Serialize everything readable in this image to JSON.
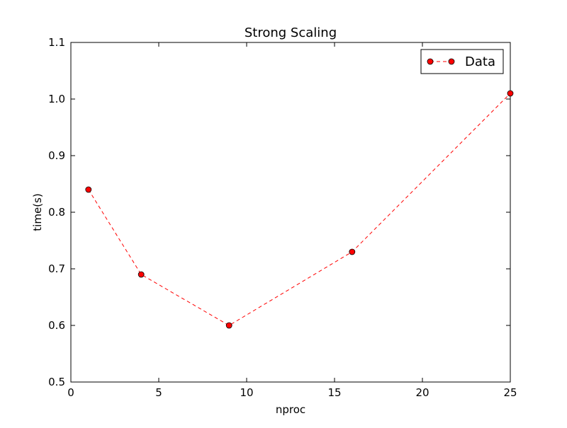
{
  "chart_data": {
    "type": "line",
    "title": "Strong Scaling",
    "xlabel": "nproc",
    "ylabel": "time(s)",
    "xlim": [
      0,
      25
    ],
    "ylim": [
      0.5,
      1.1
    ],
    "xticks": [
      0,
      5,
      10,
      15,
      20,
      25
    ],
    "xtick_labels": [
      "0",
      "5",
      "10",
      "15",
      "20",
      "25"
    ],
    "yticks": [
      0.5,
      0.6,
      0.7,
      0.8,
      0.9,
      1.0,
      1.1
    ],
    "ytick_labels": [
      "0.5",
      "0.6",
      "0.7",
      "0.8",
      "0.9",
      "1.0",
      "1.1"
    ],
    "grid": false,
    "legend_position": "top-right",
    "series": [
      {
        "name": "Data",
        "color": "#ff0000",
        "line_style": "dashed",
        "marker": "circle",
        "x": [
          1,
          4,
          9,
          16,
          25
        ],
        "y": [
          0.84,
          0.69,
          0.6,
          0.73,
          1.01
        ]
      }
    ]
  }
}
